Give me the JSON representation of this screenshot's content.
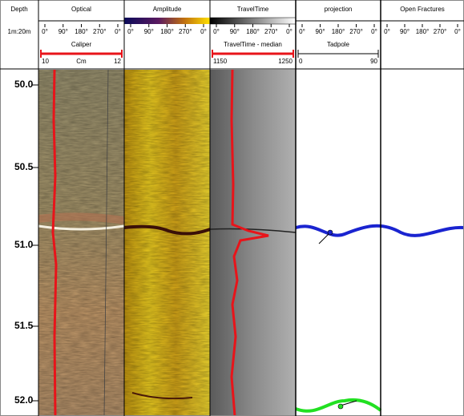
{
  "tracks": [
    {
      "title": "Depth",
      "scale": [
        "1m:20m"
      ]
    },
    {
      "title": "Optical",
      "scale": [
        "0°",
        "90°",
        "180°",
        "270°",
        "0°"
      ]
    },
    {
      "title": "Amplitude",
      "scale": [
        "0°",
        "90°",
        "180°",
        "270°",
        "0°"
      ]
    },
    {
      "title": "TravelTime",
      "scale": [
        "0°",
        "90°",
        "180°",
        "270°",
        "0°"
      ]
    },
    {
      "title": "projection",
      "scale": [
        "0°",
        "90°",
        "180°",
        "270°",
        "0°"
      ]
    },
    {
      "title": "Open Fractures",
      "scale": [
        "0°",
        "90°",
        "180°",
        "270°",
        "0°"
      ]
    }
  ],
  "curves": [
    {
      "name": "Caliper",
      "min": "10",
      "unit": "Cm",
      "max": "12"
    },
    {
      "name": "TravelTime  - median",
      "min": "1150",
      "max": "1250"
    },
    {
      "name": "Tadpole",
      "min": "0",
      "max": "90"
    }
  ],
  "depths": [
    "50.0",
    "50.5",
    "51.0",
    "51.5",
    "52.0"
  ]
}
